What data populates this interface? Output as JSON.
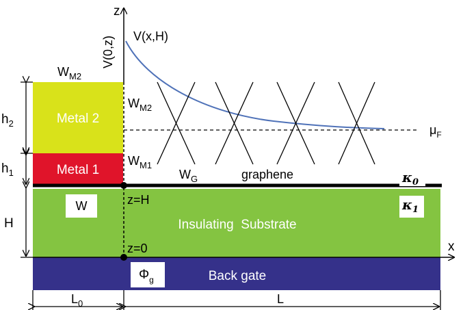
{
  "axes": {
    "z_label": "z",
    "x_label": "x",
    "v0z_label": "V(0,z)",
    "vxh_label": "V(x,H)"
  },
  "regions": {
    "metal2": "Metal 2",
    "metal1": "Metal 1",
    "substrate": "Insulating  Substrate",
    "backgate": "Back gate",
    "graphene": "graphene"
  },
  "labels": {
    "wm2_top": {
      "main": "W",
      "sub": "M2"
    },
    "wm2_right": {
      "main": "W",
      "sub": "M2"
    },
    "wm1": {
      "main": "W",
      "sub": "M1"
    },
    "wg": {
      "main": "W",
      "sub": "G"
    },
    "w_box": "W",
    "mu_f": {
      "main": "μ",
      "sub": "F"
    },
    "kappa0": {
      "main": "κ",
      "sub": "0"
    },
    "kappa1": {
      "main": "κ",
      "sub": "1"
    },
    "phi_g": {
      "main": "Φ",
      "sub": "g"
    },
    "z_eq_h": "z=H",
    "z_eq_0": "z=0",
    "h2": {
      "main": "h",
      "sub": "2"
    },
    "h1": {
      "main": "h",
      "sub": "1"
    },
    "h": "H",
    "l0": {
      "main": "L",
      "sub": "0"
    },
    "l": "L"
  },
  "colors": {
    "metal2": "#d9e21a",
    "metal1": "#e0142a",
    "substrate": "#84c441",
    "backgate": "#35318a",
    "curve": "#4f72b8"
  }
}
